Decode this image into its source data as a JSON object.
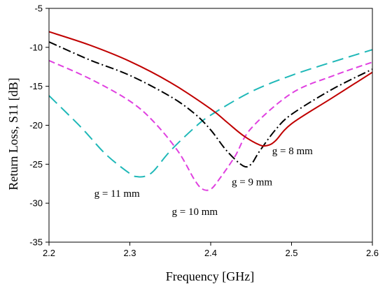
{
  "chart_data": {
    "type": "line",
    "title": "",
    "xlabel": "Frequency [GHz]",
    "ylabel": "Return Loss, S11 [dB]",
    "xlim": [
      2.2,
      2.6
    ],
    "ylim": [
      -35,
      -5
    ],
    "xticks": [
      2.2,
      2.3,
      2.4,
      2.5,
      2.6
    ],
    "xtick_labels": [
      "2.2",
      "2.3",
      "2.4",
      "2.5",
      "2.6"
    ],
    "yticks": [
      -35,
      -30,
      -25,
      -20,
      -15,
      -10,
      -5
    ],
    "ytick_labels": [
      "-35",
      "-30",
      "-25",
      "-20",
      "-15",
      "-10",
      "-5"
    ],
    "grid": false,
    "legend": "none (curves labeled directly)",
    "series": [
      {
        "name": "g = 8 mm",
        "color": "#c00000",
        "dash": "solid",
        "x": [
          2.2,
          2.25,
          2.3,
          2.35,
          2.4,
          2.42,
          2.44,
          2.46,
          2.47,
          2.48,
          2.5,
          2.55,
          2.6
        ],
        "y": [
          -8.0,
          -9.7,
          -11.8,
          -14.5,
          -17.9,
          -19.6,
          -21.3,
          -22.5,
          -22.6,
          -22.0,
          -19.8,
          -16.5,
          -13.2
        ]
      },
      {
        "name": "g = 9 mm",
        "color": "#000000",
        "dash": "dashdot",
        "x": [
          2.2,
          2.25,
          2.3,
          2.35,
          2.38,
          2.4,
          2.42,
          2.44,
          2.45,
          2.46,
          2.48,
          2.5,
          2.55,
          2.6
        ],
        "y": [
          -9.3,
          -11.6,
          -13.6,
          -16.3,
          -18.5,
          -20.6,
          -23.3,
          -25.2,
          -25.0,
          -23.4,
          -20.6,
          -18.6,
          -15.4,
          -12.8
        ]
      },
      {
        "name": "g = 10 mm",
        "color": "#e040e0",
        "dash": "dashed",
        "x": [
          2.2,
          2.25,
          2.3,
          2.33,
          2.36,
          2.38,
          2.39,
          2.4,
          2.41,
          2.43,
          2.45,
          2.5,
          2.55,
          2.6
        ],
        "y": [
          -11.7,
          -14.0,
          -16.9,
          -19.6,
          -23.4,
          -27.0,
          -28.2,
          -28.2,
          -27.0,
          -24.0,
          -20.4,
          -15.9,
          -13.7,
          -11.9
        ]
      },
      {
        "name": "g = 11 mm",
        "color": "#1fb8b8",
        "dash": "longdash",
        "x": [
          2.2,
          2.24,
          2.27,
          2.3,
          2.31,
          2.32,
          2.33,
          2.35,
          2.38,
          2.4,
          2.45,
          2.5,
          2.55,
          2.6
        ],
        "y": [
          -16.2,
          -20.3,
          -23.7,
          -26.2,
          -26.6,
          -26.5,
          -25.8,
          -23.3,
          -20.3,
          -18.7,
          -15.7,
          -13.6,
          -11.9,
          -10.3
        ]
      }
    ],
    "annotations": [
      {
        "text": "g = 8 mm",
        "x": 2.476,
        "y": -23.7
      },
      {
        "text": "g = 9 mm",
        "x": 2.426,
        "y": -27.7
      },
      {
        "text": "g = 10 mm",
        "x": 2.352,
        "y": -31.5
      },
      {
        "text": "g = 11 mm",
        "x": 2.256,
        "y": -29.2
      }
    ]
  }
}
